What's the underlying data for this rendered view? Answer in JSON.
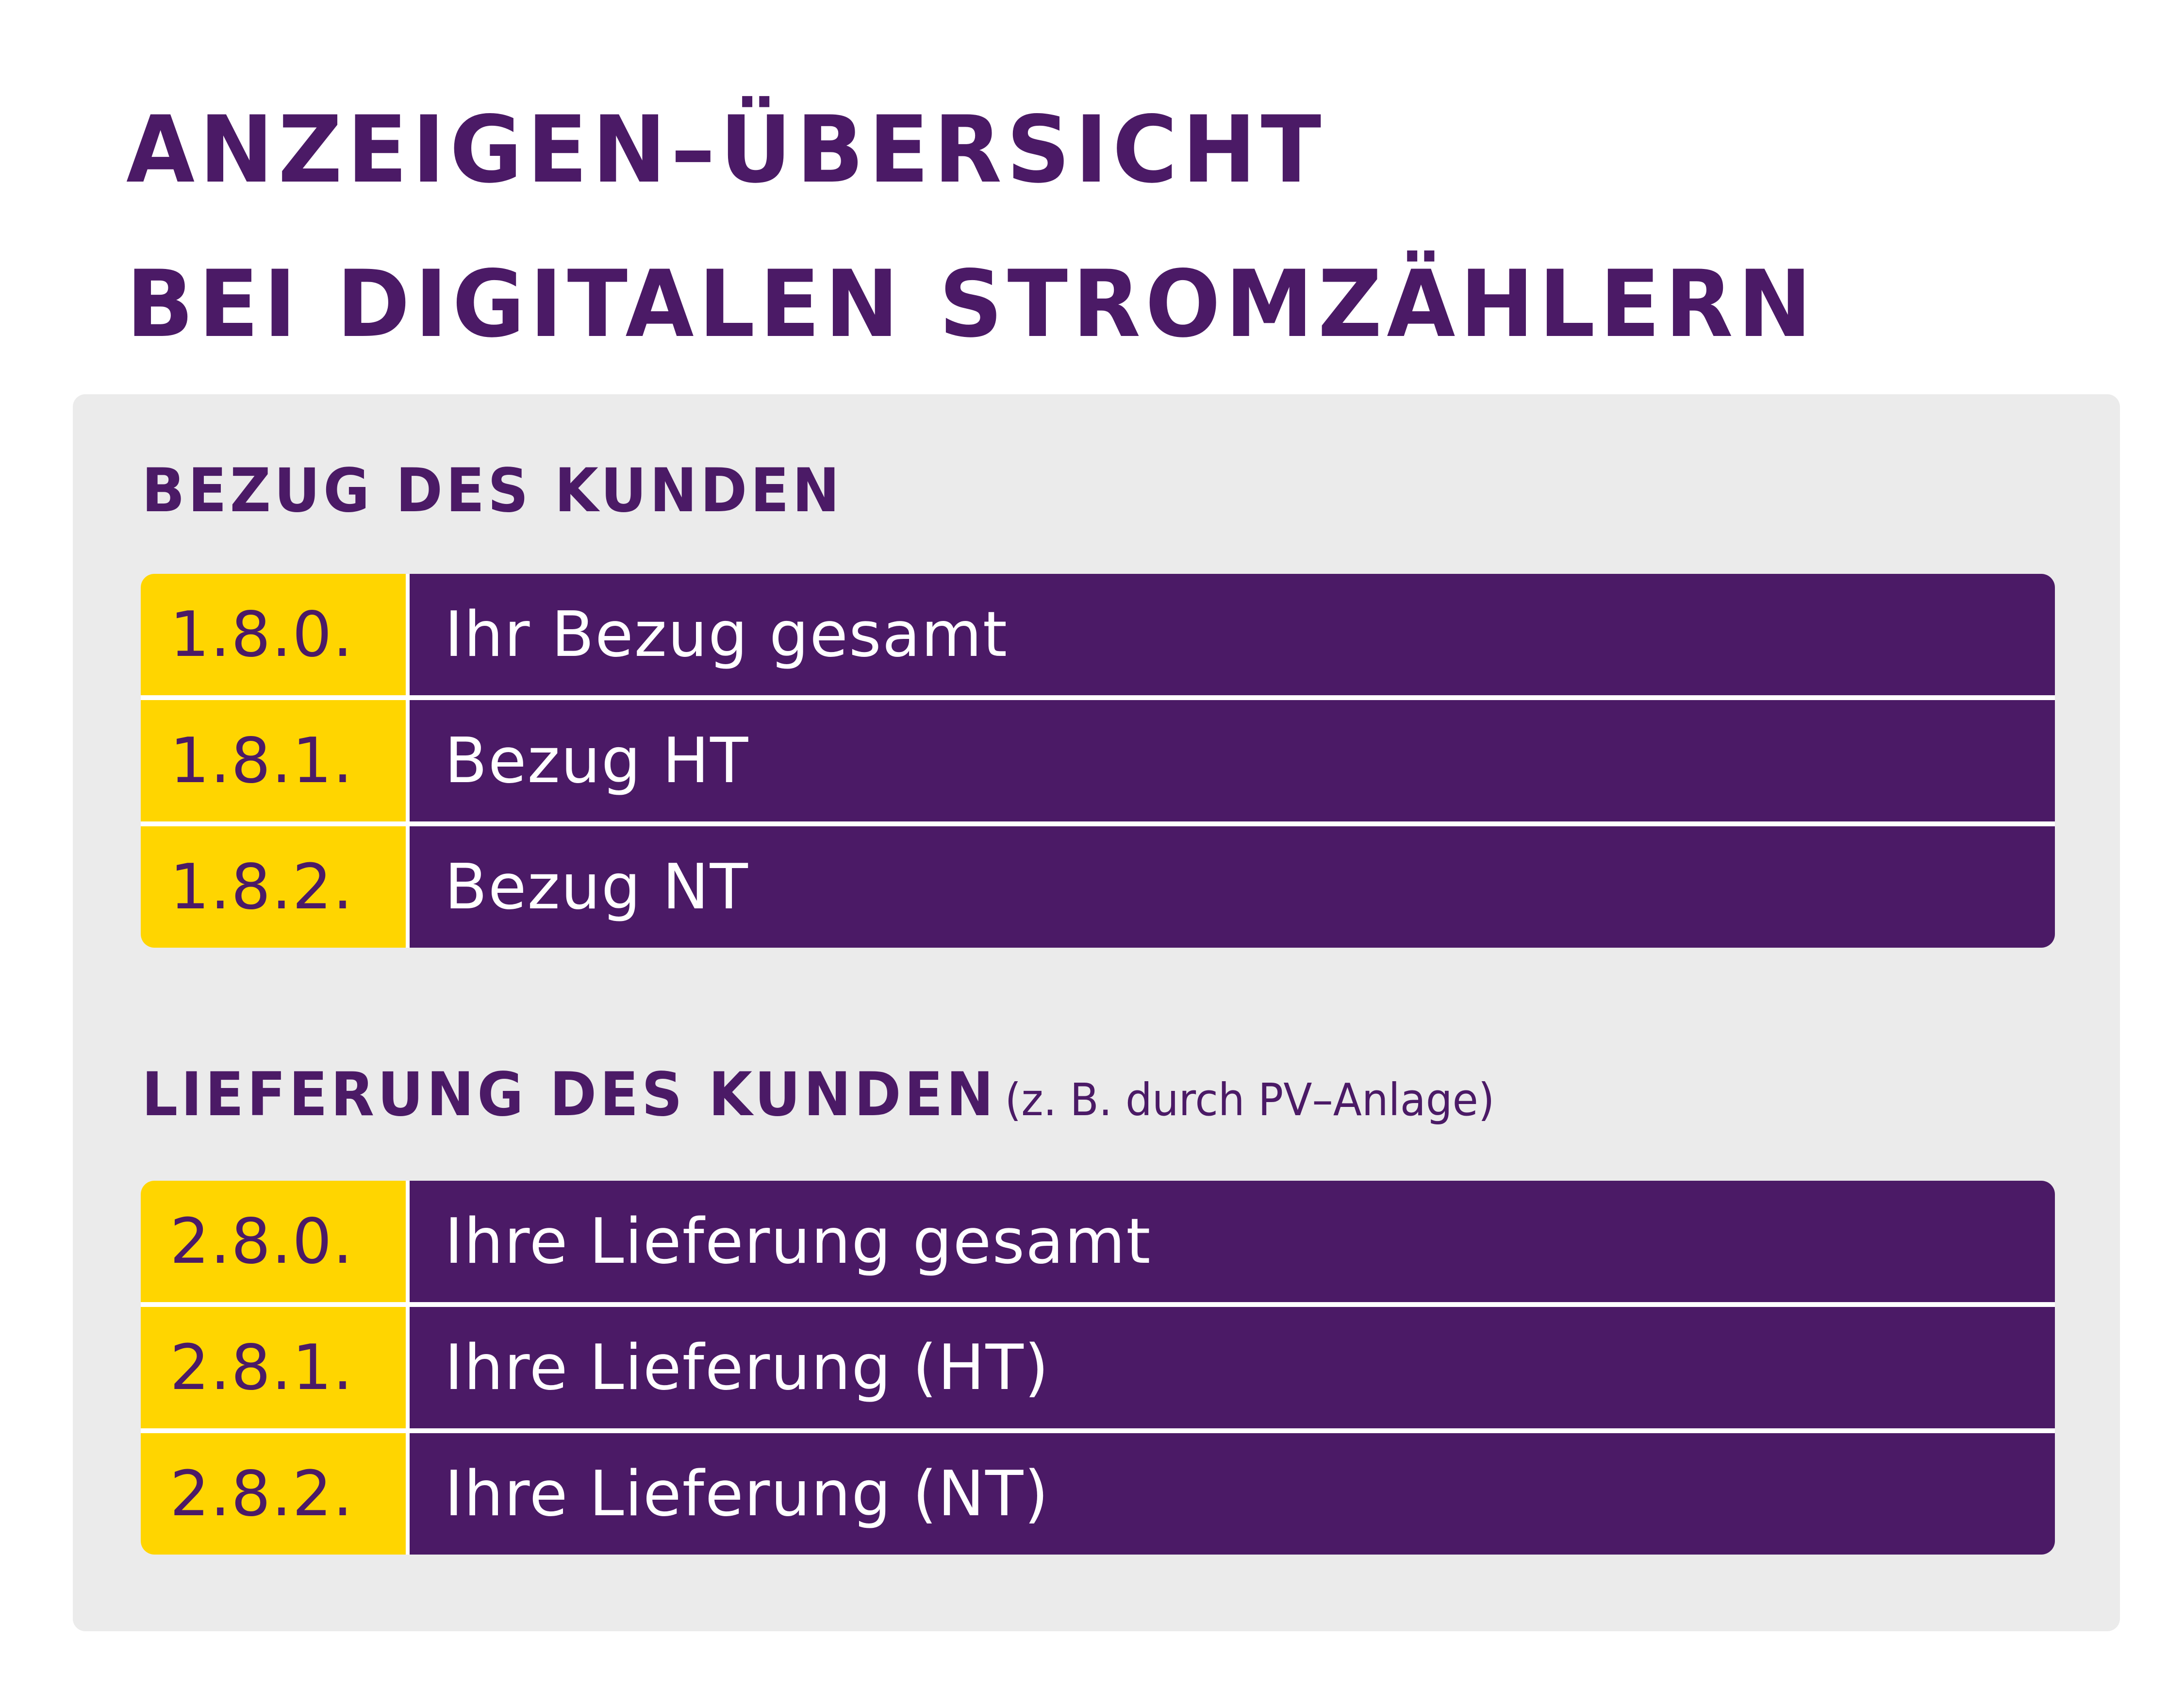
{
  "title": {
    "line1": "ANZEIGEN–ÜBERSICHT",
    "line2": "BEI DIGITALEN STROMZÄHLERN"
  },
  "sections": [
    {
      "heading": "BEZUG DES KUNDEN",
      "note": "",
      "rows": [
        {
          "code": "1.8.0.",
          "label": "Ihr Bezug gesamt"
        },
        {
          "code": "1.8.1.",
          "label": "Bezug HT"
        },
        {
          "code": "1.8.2.",
          "label": "Bezug NT"
        }
      ]
    },
    {
      "heading": "LIEFERUNG DES KUNDEN",
      "note": "(z. B. durch PV–Anlage)",
      "rows": [
        {
          "code": "2.8.0.",
          "label": "Ihre Lieferung gesamt"
        },
        {
          "code": "2.8.1.",
          "label": "Ihre Lieferung (HT)"
        },
        {
          "code": "2.8.2.",
          "label": "Ihre Lieferung (NT)"
        }
      ]
    }
  ],
  "colors": {
    "purple": "#4b1a66",
    "yellow": "#ffd500",
    "panel": "#ebebeb",
    "background": "#ffffff"
  }
}
